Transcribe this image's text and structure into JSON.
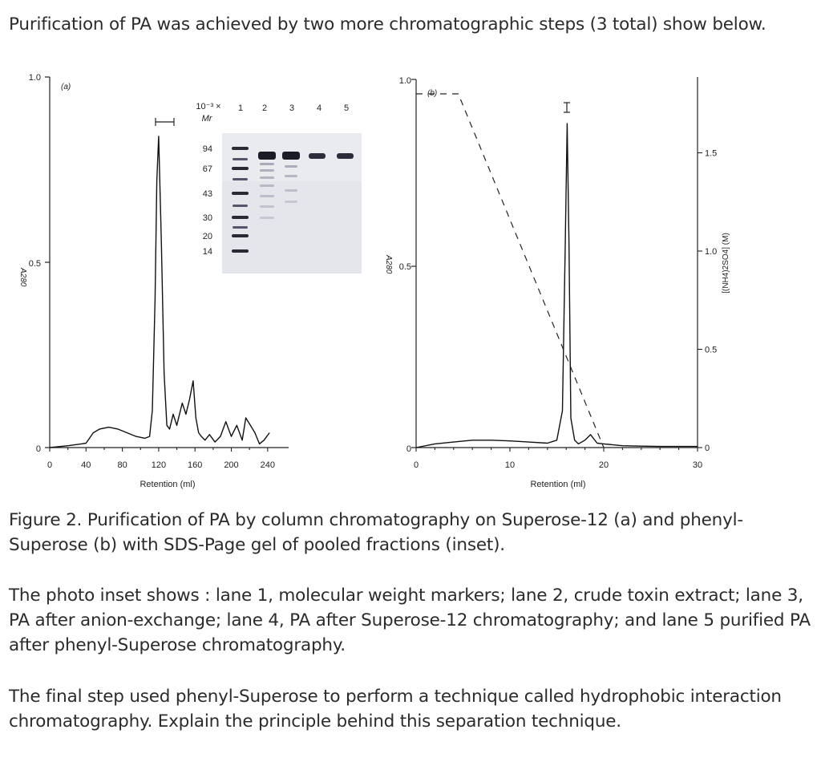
{
  "intro": "Purification of PA was achieved by two more chromatographic steps (3 total) show below.",
  "caption": "Figure 2. Purification of PA by column chromatography on Superose-12 (a) and phenyl-Superose (b) with SDS-Page gel of pooled fractions (inset).",
  "inset_description": "The photo inset shows : lane 1, molecular weight markers; lane 2, crude toxin extract; lane 3, PA after anion-exchange; lane 4, PA after Superose-12 chromatography; and lane 5 purified PA after phenyl-Superose chromatography.",
  "question": "The final step used phenyl-Superose to perform a technique called hydrophobic interaction chromatography. Explain the principle behind this separation technique.",
  "chart_data": [
    {
      "type": "line",
      "panel_label": "(a)",
      "xlabel": "Retention (ml)",
      "ylabel": "A280",
      "xlim": [
        0,
        240
      ],
      "ylim": [
        0,
        1.0
      ],
      "x_ticks": [
        "0",
        "40",
        "80",
        "120",
        "160",
        "200",
        "240"
      ],
      "y_ticks": [
        "0",
        "0.5",
        "1.0"
      ],
      "series": [
        {
          "x": [
            0,
            20,
            35,
            40,
            48,
            55,
            65,
            75,
            85,
            95,
            105,
            110,
            113,
            116,
            118,
            120,
            123,
            126,
            129,
            132,
            136,
            140,
            146,
            150,
            154,
            158,
            161,
            164,
            167,
            171,
            176,
            182,
            188,
            194,
            200,
            206,
            212,
            216,
            221,
            226,
            231,
            236,
            242
          ],
          "y": [
            0,
            0.005,
            0.01,
            0.012,
            0.04,
            0.05,
            0.055,
            0.05,
            0.04,
            0.03,
            0.025,
            0.03,
            0.1,
            0.4,
            0.72,
            0.84,
            0.55,
            0.2,
            0.06,
            0.05,
            0.09,
            0.06,
            0.12,
            0.09,
            0.13,
            0.18,
            0.08,
            0.04,
            0.03,
            0.02,
            0.035,
            0.015,
            0.03,
            0.07,
            0.03,
            0.06,
            0.02,
            0.08,
            0.06,
            0.04,
            0.01,
            0.02,
            0.04
          ]
        }
      ],
      "inset": {
        "type": "gel",
        "mr_label_line1": "10⁻³ ×",
        "mr_label_line2": "Mr",
        "lanes": [
          "1",
          "2",
          "3",
          "4",
          "5"
        ],
        "markers": [
          "94",
          "67",
          "43",
          "30",
          "20",
          "14"
        ]
      }
    },
    {
      "type": "line",
      "panel_label": "(b)",
      "xlabel": "Retention (ml)",
      "ylabel": "A280",
      "y2label": "[(NH4)2SO4] (M)",
      "xlim": [
        0,
        30
      ],
      "ylim": [
        0,
        1.0
      ],
      "y2lim": [
        0,
        1.8
      ],
      "x_ticks": [
        "0",
        "10",
        "20",
        "30"
      ],
      "y_ticks": [
        "0",
        "0.5",
        "1.0"
      ],
      "y2_ticks": [
        "0",
        "0.5",
        "1.0",
        "1.5"
      ],
      "series": [
        {
          "name": "A280",
          "x": [
            0,
            2,
            4,
            6,
            8,
            10,
            12,
            14,
            15,
            15.6,
            15.9,
            16.1,
            16.3,
            16.5,
            16.9,
            17.3,
            18,
            18.6,
            19.3,
            20,
            22,
            24,
            26,
            28,
            30
          ],
          "y": [
            0,
            0.01,
            0.015,
            0.02,
            0.02,
            0.018,
            0.015,
            0.012,
            0.02,
            0.1,
            0.55,
            0.88,
            0.55,
            0.08,
            0.02,
            0.01,
            0.02,
            0.035,
            0.012,
            0.01,
            0.005,
            0.004,
            0.003,
            0.003,
            0.003
          ]
        },
        {
          "name": "[(NH4)2SO4]",
          "style": "dashed",
          "x": [
            0,
            4.5,
            20
          ],
          "y": [
            1.8,
            1.8,
            0
          ]
        }
      ]
    }
  ]
}
